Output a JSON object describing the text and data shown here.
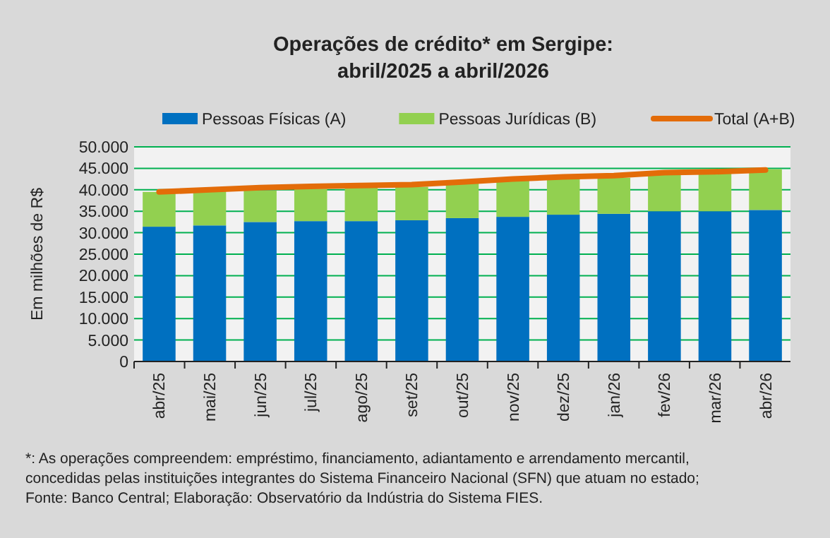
{
  "chart_data": {
    "type": "bar",
    "stacked": true,
    "title": "Operações de crédito* em Sergipe:\nabril/2025 a abril/2026",
    "ylabel": "Em milhões de R$",
    "categories": [
      "abr/25",
      "mai/25",
      "jun/25",
      "jul/25",
      "ago/25",
      "set/25",
      "out/25",
      "nov/25",
      "dez/25",
      "jan/26",
      "fev/26",
      "mar/26",
      "abr/26"
    ],
    "series": [
      {
        "name": "Pessoas Físicas (A)",
        "color": "#0070c0",
        "values": [
          31400,
          31700,
          32500,
          32700,
          32700,
          32900,
          33400,
          33700,
          34200,
          34400,
          35000,
          35000,
          35300
        ]
      },
      {
        "name": "Pessoas Jurídicas (B)",
        "color": "#92d050",
        "values": [
          8100,
          7900,
          7300,
          7500,
          7800,
          7800,
          8100,
          8400,
          8400,
          8400,
          8900,
          9200,
          9500
        ]
      },
      {
        "name": "Total (A+B)",
        "type": "line",
        "color": "#e36c09",
        "values": [
          39500,
          40000,
          40500,
          40800,
          41000,
          41200,
          41800,
          42500,
          43000,
          43300,
          44000,
          44200,
          44600
        ]
      }
    ],
    "ylim": [
      0,
      50000
    ],
    "yticks": [
      {
        "value": 0,
        "label": "0"
      },
      {
        "value": 5000,
        "label": "5.000"
      },
      {
        "value": 10000,
        "label": "10.000"
      },
      {
        "value": 15000,
        "label": "15.000"
      },
      {
        "value": 20000,
        "label": "20.000"
      },
      {
        "value": 25000,
        "label": "25.000"
      },
      {
        "value": 30000,
        "label": "30.000"
      },
      {
        "value": 35000,
        "label": "35.000"
      },
      {
        "value": 40000,
        "label": "40.000"
      },
      {
        "value": 45000,
        "label": "45.000"
      },
      {
        "value": 50000,
        "label": "50.000"
      }
    ],
    "grid": "y",
    "legend": "top",
    "marker": "none",
    "annotations": [
      "*: As operações compreendem: empréstimo, financiamento, adiantamento e arrendamento mercantil,",
      "concedidas pelas instituições integrantes do Sistema Financeiro Nacional (SFN) que atuam no estado;",
      "Fonte: Banco Central; Elaboração: Observatório da Indústria do Sistema FIES."
    ]
  }
}
